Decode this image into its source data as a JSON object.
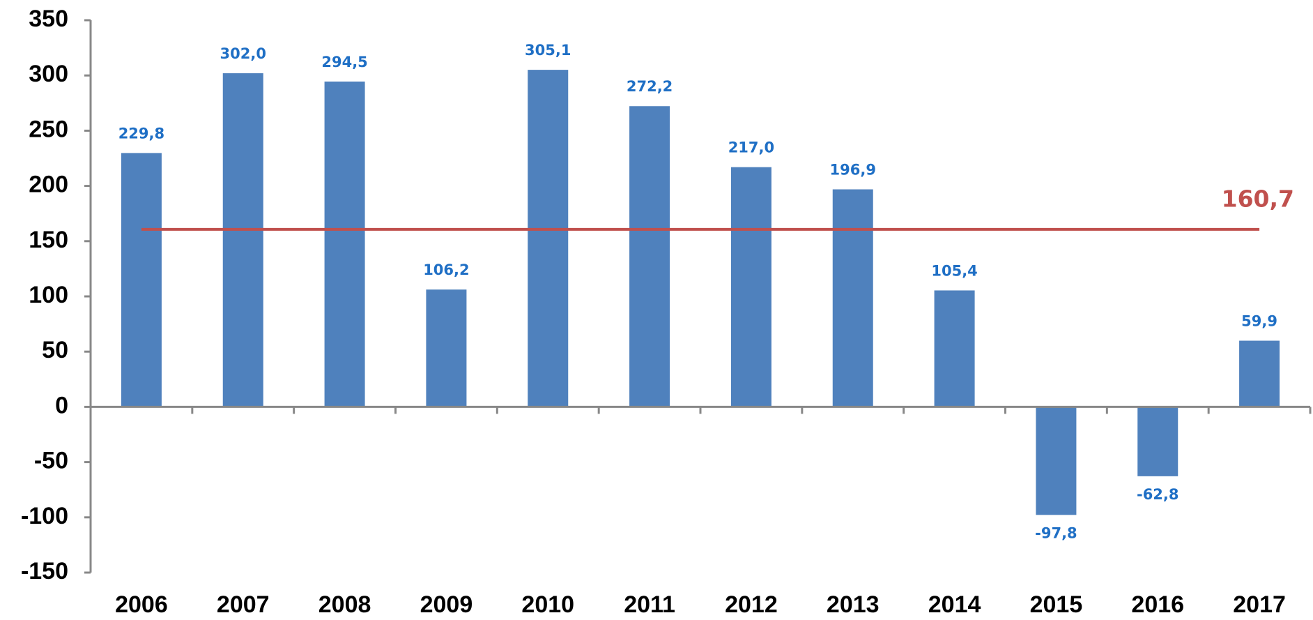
{
  "chart_data": {
    "type": "bar",
    "categories": [
      "2006",
      "2007",
      "2008",
      "2009",
      "2010",
      "2011",
      "2012",
      "2013",
      "2014",
      "2015",
      "2016",
      "2017"
    ],
    "values": [
      229.8,
      302.0,
      294.5,
      106.2,
      305.1,
      272.2,
      217.0,
      196.9,
      105.4,
      -97.8,
      -62.8,
      59.9
    ],
    "value_labels": [
      "229,8",
      "302,0",
      "294,5",
      "106,2",
      "305,1",
      "272,2",
      "217,0",
      "196,9",
      "105,4",
      "-97,8",
      "-62,8",
      "59,9"
    ],
    "color": "#4f81bd",
    "ylim": [
      -150,
      350
    ],
    "yticks": [
      -150,
      -100,
      -50,
      0,
      50,
      100,
      150,
      200,
      250,
      300,
      350
    ],
    "average": {
      "value": 160.7,
      "label": "160,7",
      "color": "#c0504d"
    }
  }
}
